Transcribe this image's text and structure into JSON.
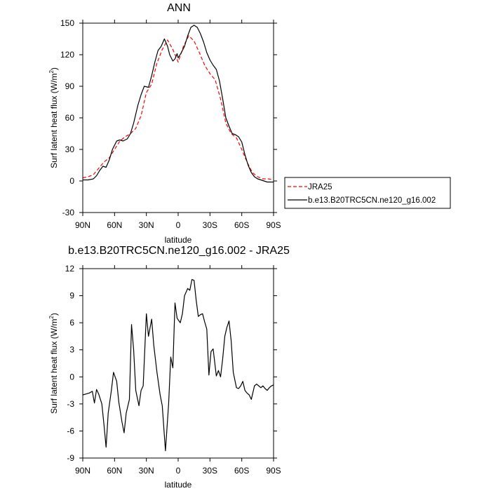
{
  "chart_data": [
    {
      "type": "line",
      "title": "ANN",
      "xlabel": "latitude",
      "ylabel": "Surf latent heat flux (W/m",
      "ylabel_sup": "2",
      "ylabel_close": ")",
      "xlim": [
        90,
        -90
      ],
      "ylim": [
        -30,
        150
      ],
      "xticks": [
        90,
        60,
        30,
        0,
        -30,
        -60,
        -90
      ],
      "xtick_labels": [
        "90N",
        "60N",
        "30N",
        "0",
        "30S",
        "60S",
        "90S"
      ],
      "yticks": [
        -30,
        0,
        30,
        60,
        90,
        120,
        150
      ],
      "ytick_labels": [
        "-30",
        "0",
        "30",
        "60",
        "90",
        "120",
        "150"
      ],
      "legend_position": "right",
      "grid": false,
      "series": [
        {
          "name": "JRA25",
          "color": "#ff0000",
          "dash": "dashed",
          "x": [
            90,
            85,
            80,
            75,
            70,
            65,
            60,
            55,
            50,
            45,
            40,
            35,
            30,
            25,
            20,
            15,
            10,
            5,
            0,
            -5,
            -10,
            -15,
            -20,
            -25,
            -30,
            -35,
            -40,
            -45,
            -50,
            -55,
            -60,
            -65,
            -70,
            -75,
            -80,
            -85,
            -90
          ],
          "y": [
            3,
            4,
            6,
            12,
            18,
            22,
            30,
            38,
            42,
            45,
            50,
            62,
            84,
            92,
            112,
            125,
            134,
            125,
            113,
            128,
            138,
            133,
            122,
            110,
            102,
            96,
            78,
            55,
            45,
            41,
            30,
            18,
            8,
            4,
            2,
            2,
            1
          ]
        },
        {
          "name": "b.e13.B20TRC5CN.ne120_g16.002",
          "color": "#000000",
          "dash": "solid",
          "x": [
            90,
            85,
            80,
            77,
            74,
            71,
            68,
            65,
            62,
            58,
            55,
            52,
            48,
            45,
            42,
            38,
            35,
            32,
            28,
            25,
            22,
            19,
            16,
            13,
            10,
            8,
            5,
            3,
            1,
            0,
            -3,
            -6,
            -9,
            -12,
            -15,
            -18,
            -21,
            -24,
            -27,
            -30,
            -33,
            -36,
            -39,
            -42,
            -45,
            -48,
            -51,
            -54,
            -57,
            -60,
            -63,
            -66,
            -69,
            -72,
            -75,
            -78,
            -81,
            -84,
            -87,
            -90
          ],
          "y": [
            1,
            1,
            2,
            5,
            10,
            14,
            13,
            20,
            30,
            38,
            39,
            38,
            40,
            45,
            55,
            72,
            82,
            90,
            89,
            100,
            113,
            124,
            128,
            135,
            128,
            120,
            114,
            116,
            121,
            117,
            122,
            128,
            138,
            146,
            148,
            146,
            140,
            132,
            122,
            115,
            110,
            106,
            95,
            78,
            60,
            52,
            45,
            44,
            42,
            37,
            25,
            15,
            8,
            4,
            2,
            1,
            0,
            -1,
            -1,
            -1
          ]
        }
      ]
    },
    {
      "type": "line",
      "title": "b.e13.B20TRC5CN.ne120_g16.002 - JRA25",
      "xlabel": "latitude",
      "ylabel": "Surf latent heat flux (W/m",
      "ylabel_sup": "2",
      "ylabel_close": ")",
      "xlim": [
        90,
        -90
      ],
      "ylim": [
        -9,
        12
      ],
      "xticks": [
        90,
        60,
        30,
        0,
        -30,
        -60,
        -90
      ],
      "xtick_labels": [
        "90N",
        "60N",
        "30N",
        "0",
        "30S",
        "60S",
        "90S"
      ],
      "yticks": [
        -9,
        -6,
        -3,
        0,
        3,
        6,
        9,
        12
      ],
      "ytick_labels": [
        "-9",
        "-6",
        "-3",
        "0",
        "3",
        "6",
        "9",
        "12"
      ],
      "grid": false,
      "series": [
        {
          "color": "#000000",
          "dash": "solid",
          "x": [
            90,
            87,
            84,
            81,
            79,
            77,
            75,
            72,
            70,
            68,
            66,
            63,
            61,
            58,
            56,
            53,
            51,
            49,
            46,
            44,
            42,
            40,
            37,
            35,
            33,
            30,
            28,
            25,
            23,
            20,
            17,
            15,
            12,
            9,
            7,
            5,
            3,
            1,
            -2,
            -4,
            -6,
            -9,
            -11,
            -13,
            -15,
            -17,
            -19,
            -21,
            -23,
            -25,
            -27,
            -29,
            -31,
            -33,
            -36,
            -38,
            -40,
            -42,
            -44,
            -46,
            -48,
            -50,
            -52,
            -55,
            -57,
            -59,
            -61,
            -63,
            -65,
            -67,
            -69,
            -72,
            -74,
            -76,
            -78,
            -80,
            -82,
            -84,
            -86,
            -88,
            -90
          ],
          "y": [
            -2,
            -1.9,
            -1.8,
            -1.6,
            -2.9,
            -1.4,
            -1.9,
            -3,
            -5.3,
            -7.8,
            -4,
            -1.5,
            0.5,
            -0.5,
            -2.8,
            -5,
            -6.2,
            -4,
            -2.5,
            5.8,
            3,
            -1.5,
            -3.2,
            -1.5,
            -1,
            7,
            4.5,
            6.4,
            3.5,
            0.5,
            -2,
            -3.2,
            -8.2,
            -3,
            2.2,
            1,
            8.2,
            6.5,
            6,
            7,
            9,
            9.8,
            9.6,
            10.8,
            10.7,
            8.5,
            6.7,
            6.9,
            7,
            6.1,
            5.3,
            0.2,
            2.8,
            3.1,
            0.1,
            0.7,
            0,
            2,
            4.5,
            5.5,
            6.2,
            4,
            0.5,
            -1.2,
            -1.3,
            -1,
            -0.5,
            -1.5,
            -1.8,
            -2,
            -2.5,
            -1,
            -0.8,
            -1,
            -1.2,
            -1,
            -1.3,
            -1.5,
            -1.2,
            -1,
            -0.9
          ]
        }
      ]
    }
  ]
}
